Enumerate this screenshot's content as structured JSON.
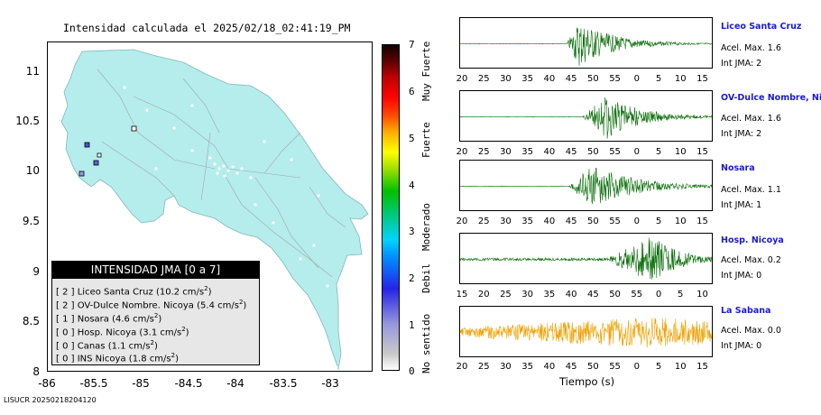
{
  "map": {
    "title": "Intensidad calculada el 2025/02/18_02:41:19_PM",
    "lat_ticks": [
      "11",
      "10.5",
      "10",
      "9.5",
      "9",
      "8.5",
      "8"
    ],
    "lon_ticks": [
      "-86",
      "-85.5",
      "-85",
      "-84.5",
      "-84",
      "-83.5",
      "-83"
    ],
    "land_color": "#b5ecec",
    "legend": {
      "title": "INTENSIDAD JMA [0 a 7]",
      "rows": [
        {
          "int": "[ 2 ]",
          "name": "Liceo Santa Cruz",
          "acc": "(10.2 cm/s",
          "exp": "2",
          "close": ")"
        },
        {
          "int": "[ 2 ]",
          "name": "OV-Dulce Nombre. Nicoya",
          "acc": "(5.4 cm/s",
          "exp": "2",
          "close": ")"
        },
        {
          "int": "[ 1 ]",
          "name": "Nosara",
          "acc": "(4.6 cm/s",
          "exp": "2",
          "close": ")"
        },
        {
          "int": "[ 0 ]",
          "name": "Hosp. Nicoya",
          "acc": "(3.1 cm/s",
          "exp": "2",
          "close": ")"
        },
        {
          "int": "[ 0 ]",
          "name": "Canas",
          "acc": "(1.1 cm/s",
          "exp": "2",
          "close": ")"
        },
        {
          "int": "[ 0 ]",
          "name": "INS Nicoya",
          "acc": "(1.8 cm/s",
          "exp": "2",
          "close": ")"
        }
      ]
    }
  },
  "colorbar": {
    "numbers": [
      "7",
      "6",
      "5",
      "4",
      "3",
      "2",
      "1",
      "0"
    ],
    "words": [
      "Muy Fuerte",
      "Fuerte",
      "Moderado",
      "Debil",
      "No sentido"
    ]
  },
  "footer": "LISUCR 20250218204120",
  "traces": {
    "xlabel": "Tiempo (s)",
    "stations": [
      {
        "name": "Liceo Santa Cruz",
        "acc": "Acel. Max. 1.6",
        "int": "Int JMA: 2",
        "color": "#0a6e0a",
        "ticks": [
          "20",
          "25",
          "30",
          "35",
          "40",
          "45",
          "50",
          "55",
          "0",
          "5",
          "10",
          "15"
        ]
      },
      {
        "name": "OV-Dulce Nombre, Nico",
        "acc": "Acel. Max. 1.6",
        "int": "Int JMA: 2",
        "color": "#0a6e0a",
        "ticks": [
          "20",
          "25",
          "30",
          "35",
          "40",
          "45",
          "50",
          "55",
          "0",
          "5",
          "10",
          "15"
        ]
      },
      {
        "name": "Nosara",
        "acc": "Acel. Max. 1.1",
        "int": "Int JMA: 1",
        "color": "#0a6e0a",
        "ticks": [
          "20",
          "25",
          "30",
          "35",
          "40",
          "45",
          "50",
          "55",
          "0",
          "5",
          "10",
          "15"
        ]
      },
      {
        "name": "Hosp. Nicoya",
        "acc": "Acel. Max. 0.2",
        "int": "Int JMA: 0",
        "color": "#0a6e0a",
        "ticks": [
          "15",
          "20",
          "25",
          "30",
          "35",
          "40",
          "45",
          "50",
          "55",
          "0",
          "5",
          "10"
        ]
      },
      {
        "name": "La Sabana",
        "acc": "Acel. Max. 0.0",
        "int": "Int JMA: 0",
        "color": "#f0a000",
        "ticks": [
          "20",
          "25",
          "30",
          "35",
          "40",
          "45",
          "50",
          "55",
          "0",
          "5",
          "10",
          "15"
        ]
      }
    ]
  }
}
